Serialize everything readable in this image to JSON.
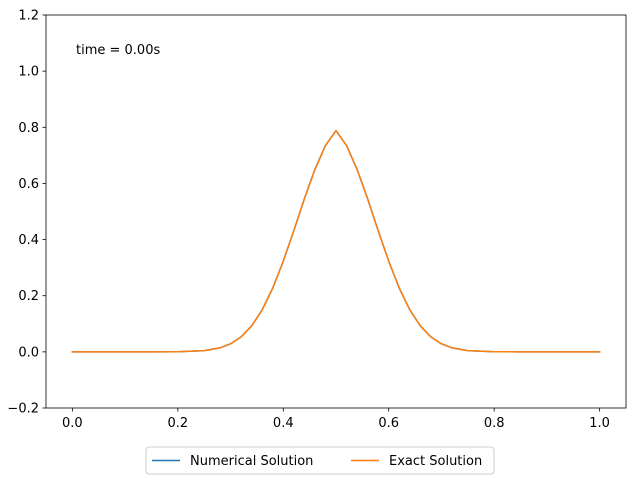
{
  "chart_data": {
    "type": "line",
    "title": "",
    "xlabel": "",
    "ylabel": "",
    "xlim": [
      -0.05,
      1.05
    ],
    "ylim": [
      -0.2,
      1.2
    ],
    "x_ticks": [
      0.0,
      0.2,
      0.4,
      0.6,
      0.8,
      1.0
    ],
    "x_tick_labels": [
      "0.0",
      "0.2",
      "0.4",
      "0.6",
      "0.8",
      "1.0"
    ],
    "y_ticks": [
      -0.2,
      0.0,
      0.2,
      0.4,
      0.6,
      0.8,
      1.0,
      1.2
    ],
    "y_tick_labels": [
      "−0.2",
      "0.0",
      "0.2",
      "0.4",
      "0.6",
      "0.8",
      "1.0",
      "1.2"
    ],
    "grid": false,
    "legend_position": "bottom-center, below axes",
    "annotation": "time = 0.00s",
    "x": [
      0.0,
      0.05,
      0.1,
      0.15,
      0.2,
      0.25,
      0.28,
      0.3,
      0.32,
      0.34,
      0.36,
      0.38,
      0.4,
      0.42,
      0.44,
      0.46,
      0.48,
      0.5,
      0.52,
      0.54,
      0.56,
      0.58,
      0.6,
      0.62,
      0.64,
      0.66,
      0.68,
      0.7,
      0.72,
      0.75,
      0.8,
      0.85,
      0.9,
      0.95,
      1.0
    ],
    "series": [
      {
        "name": "Numerical Solution",
        "color": "#1f77b4",
        "values": [
          0.0,
          0.0,
          0.0,
          0.0,
          0.0004,
          0.0044,
          0.0143,
          0.0286,
          0.0532,
          0.0923,
          0.1496,
          0.227,
          0.323,
          0.432,
          0.545,
          0.65,
          0.735,
          0.788,
          0.735,
          0.65,
          0.545,
          0.432,
          0.323,
          0.227,
          0.1496,
          0.0923,
          0.0532,
          0.0286,
          0.0143,
          0.0044,
          0.0004,
          0.0,
          0.0,
          0.0,
          0.0
        ]
      },
      {
        "name": "Exact Solution",
        "color": "#ff7f0e",
        "values": [
          0.0,
          0.0,
          0.0,
          0.0,
          0.0004,
          0.0044,
          0.0143,
          0.0286,
          0.0532,
          0.0923,
          0.1496,
          0.227,
          0.323,
          0.432,
          0.545,
          0.65,
          0.735,
          0.788,
          0.735,
          0.65,
          0.545,
          0.432,
          0.323,
          0.227,
          0.1496,
          0.0923,
          0.0532,
          0.0286,
          0.0143,
          0.0044,
          0.0004,
          0.0,
          0.0,
          0.0,
          0.0
        ]
      }
    ]
  }
}
